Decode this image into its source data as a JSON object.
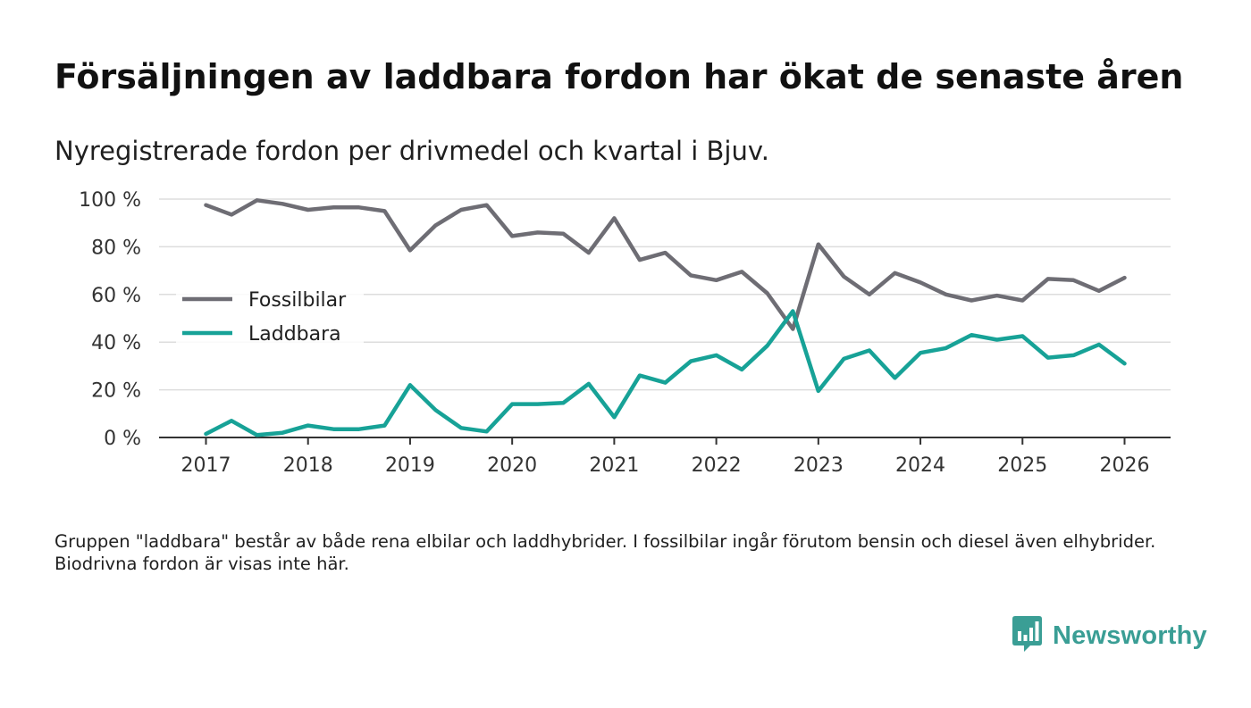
{
  "title": "Försäljningen av laddbara fordon har ökat de senaste åren",
  "subtitle": "Nyregistrerade fordon per drivmedel och kvartal i Bjuv.",
  "note": "Gruppen \"laddbara\" består av både rena elbilar och laddhybrider. I fossilbilar ingår förutom bensin och diesel även elhybrider. Biodrivna fordon är visas inte här.",
  "brand": {
    "name": "Newsworthy"
  },
  "colors": {
    "fossil": "#6e6d74",
    "laddbara": "#17a297",
    "grid": "#dddddd",
    "axis": "#333333",
    "brand": "#3a9e95"
  },
  "chart_data": {
    "type": "line",
    "x_start": 2017,
    "step": 0.25,
    "xticks": [
      2017,
      2018,
      2019,
      2020,
      2021,
      2022,
      2023,
      2024,
      2025,
      2026
    ],
    "ylim": [
      0,
      100
    ],
    "yticks": [
      0,
      20,
      40,
      60,
      80,
      100
    ],
    "ytick_labels": [
      "0 %",
      "20 %",
      "40 %",
      "60 %",
      "80 %",
      "100 %"
    ],
    "legend_position": "left",
    "series": [
      {
        "name": "Fossilbilar",
        "color": "#6e6d74",
        "values": [
          97.5,
          93.5,
          99.5,
          98,
          95.5,
          96.5,
          96.5,
          95,
          78.5,
          89,
          95.5,
          97.5,
          84.5,
          86,
          85.5,
          77.5,
          92,
          74.5,
          77.5,
          68,
          66,
          69.5,
          60.5,
          45.5,
          81,
          67.5,
          60,
          69,
          65,
          60,
          57.5,
          59.5,
          57.5,
          66.5,
          66,
          61.5,
          67
        ]
      },
      {
        "name": "Laddbara",
        "color": "#17a297",
        "values": [
          1.5,
          7,
          1,
          2,
          5,
          3.5,
          3.5,
          5,
          22,
          11.5,
          4,
          2.5,
          14,
          14,
          14.5,
          22.5,
          8.5,
          26,
          23,
          32,
          34.5,
          28.5,
          38.5,
          53,
          19.5,
          33,
          36.5,
          25,
          35.5,
          37.5,
          43,
          41,
          42.5,
          33.5,
          34.5,
          39,
          31
        ]
      }
    ]
  }
}
